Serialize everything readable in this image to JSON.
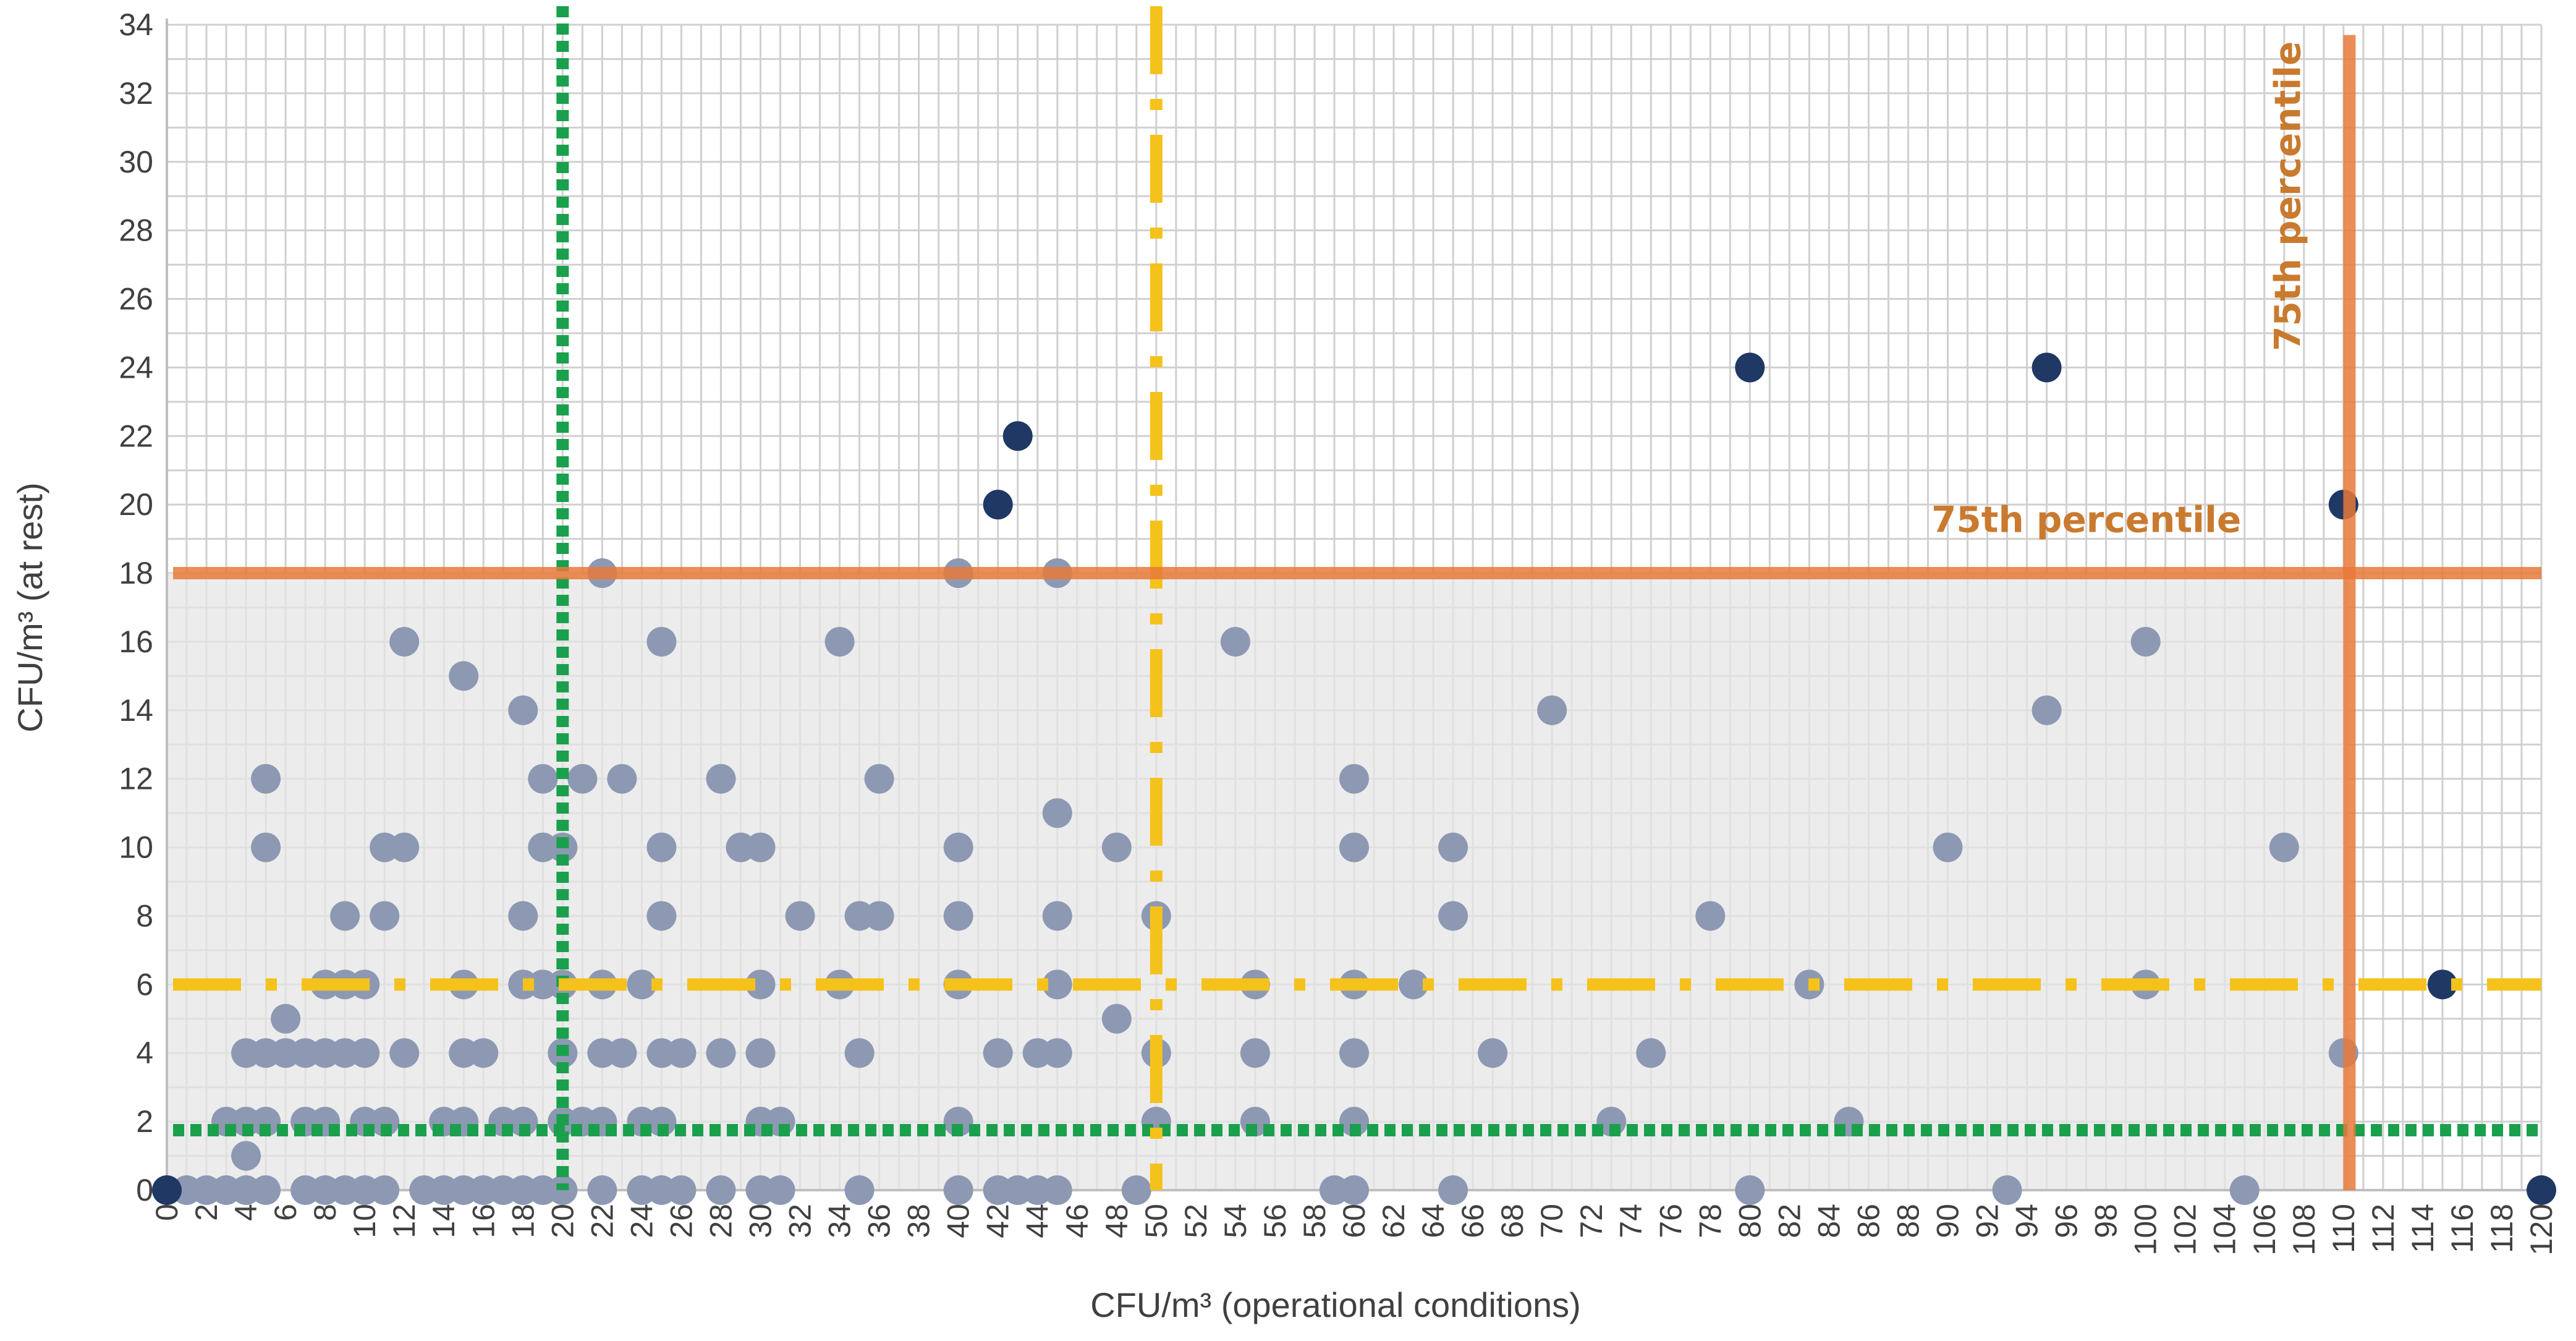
{
  "chart_data": {
    "type": "scatter",
    "title": "",
    "xlabel": "CFU/m³ (operational conditions)",
    "ylabel": "CFU/m³ (at rest)",
    "xlim": [
      0,
      120
    ],
    "ylim": [
      0,
      34
    ],
    "x_ticks": [
      0,
      2,
      4,
      6,
      8,
      10,
      12,
      14,
      16,
      18,
      20,
      22,
      24,
      26,
      28,
      30,
      32,
      34,
      36,
      38,
      40,
      42,
      44,
      46,
      48,
      50,
      52,
      54,
      56,
      58,
      60,
      62,
      64,
      66,
      68,
      70,
      72,
      74,
      76,
      78,
      80,
      82,
      84,
      86,
      88,
      90,
      92,
      94,
      96,
      98,
      100,
      102,
      104,
      106,
      108,
      110,
      112,
      114,
      116,
      118,
      120
    ],
    "y_ticks": [
      0,
      2,
      4,
      6,
      8,
      10,
      12,
      14,
      16,
      18,
      20,
      22,
      24,
      26,
      28,
      30,
      32,
      34
    ],
    "grid": true,
    "legend": "none",
    "colors": {
      "inside_points": "#8d99b3",
      "outlier_points": "#1f3864",
      "green_limit": "#1aa04c",
      "yellow_limit": "#f5c21b",
      "orange_percentile": "#e8793a",
      "shaded_region": "#e6e6e6"
    },
    "series": [
      {
        "values": [
          [
            1,
            0
          ],
          [
            2,
            0
          ],
          [
            3,
            0
          ],
          [
            4,
            0
          ],
          [
            5,
            0
          ],
          [
            7,
            0
          ],
          [
            8,
            0
          ],
          [
            9,
            0
          ],
          [
            10,
            0
          ],
          [
            11,
            0
          ],
          [
            13,
            0
          ],
          [
            14,
            0
          ],
          [
            15,
            0
          ],
          [
            16,
            0
          ],
          [
            17,
            0
          ],
          [
            18,
            0
          ],
          [
            19,
            0
          ],
          [
            20,
            0
          ],
          [
            22,
            0
          ],
          [
            24,
            0
          ],
          [
            25,
            0
          ],
          [
            26,
            0
          ],
          [
            28,
            0
          ],
          [
            30,
            0
          ],
          [
            31,
            0
          ],
          [
            35,
            0
          ],
          [
            40,
            0
          ],
          [
            42,
            0
          ],
          [
            43,
            0
          ],
          [
            44,
            0
          ],
          [
            45,
            0
          ],
          [
            49,
            0
          ],
          [
            59,
            0
          ],
          [
            60,
            0
          ],
          [
            65,
            0
          ],
          [
            80,
            0
          ],
          [
            93,
            0
          ],
          [
            105,
            0
          ],
          [
            4,
            1
          ],
          [
            3,
            2
          ],
          [
            4,
            2
          ],
          [
            5,
            2
          ],
          [
            7,
            2
          ],
          [
            8,
            2
          ],
          [
            10,
            2
          ],
          [
            11,
            2
          ],
          [
            14,
            2
          ],
          [
            15,
            2
          ],
          [
            17,
            2
          ],
          [
            18,
            2
          ],
          [
            20,
            2
          ],
          [
            21,
            2
          ],
          [
            22,
            2
          ],
          [
            24,
            2
          ],
          [
            25,
            2
          ],
          [
            30,
            2
          ],
          [
            31,
            2
          ],
          [
            40,
            2
          ],
          [
            50,
            2
          ],
          [
            55,
            2
          ],
          [
            60,
            2
          ],
          [
            73,
            2
          ],
          [
            85,
            2
          ],
          [
            4,
            4
          ],
          [
            5,
            4
          ],
          [
            6,
            4
          ],
          [
            7,
            4
          ],
          [
            8,
            4
          ],
          [
            9,
            4
          ],
          [
            10,
            4
          ],
          [
            12,
            4
          ],
          [
            15,
            4
          ],
          [
            16,
            4
          ],
          [
            20,
            4
          ],
          [
            22,
            4
          ],
          [
            23,
            4
          ],
          [
            25,
            4
          ],
          [
            26,
            4
          ],
          [
            28,
            4
          ],
          [
            30,
            4
          ],
          [
            35,
            4
          ],
          [
            42,
            4
          ],
          [
            44,
            4
          ],
          [
            45,
            4
          ],
          [
            50,
            4
          ],
          [
            55,
            4
          ],
          [
            60,
            4
          ],
          [
            67,
            4
          ],
          [
            75,
            4
          ],
          [
            110,
            4
          ],
          [
            6,
            5
          ],
          [
            48,
            5
          ],
          [
            8,
            6
          ],
          [
            9,
            6
          ],
          [
            10,
            6
          ],
          [
            15,
            6
          ],
          [
            18,
            6
          ],
          [
            19,
            6
          ],
          [
            20,
            6
          ],
          [
            22,
            6
          ],
          [
            24,
            6
          ],
          [
            30,
            6
          ],
          [
            34,
            6
          ],
          [
            40,
            6
          ],
          [
            45,
            6
          ],
          [
            55,
            6
          ],
          [
            60,
            6
          ],
          [
            63,
            6
          ],
          [
            83,
            6
          ],
          [
            100,
            6
          ],
          [
            9,
            8
          ],
          [
            11,
            8
          ],
          [
            18,
            8
          ],
          [
            25,
            8
          ],
          [
            32,
            8
          ],
          [
            35,
            8
          ],
          [
            36,
            8
          ],
          [
            40,
            8
          ],
          [
            45,
            8
          ],
          [
            50,
            8
          ],
          [
            65,
            8
          ],
          [
            78,
            8
          ],
          [
            5,
            10
          ],
          [
            11,
            10
          ],
          [
            12,
            10
          ],
          [
            19,
            10
          ],
          [
            20,
            10
          ],
          [
            25,
            10
          ],
          [
            29,
            10
          ],
          [
            30,
            10
          ],
          [
            40,
            10
          ],
          [
            48,
            10
          ],
          [
            60,
            10
          ],
          [
            65,
            10
          ],
          [
            90,
            10
          ],
          [
            107,
            10
          ],
          [
            45,
            11
          ],
          [
            5,
            12
          ],
          [
            19,
            12
          ],
          [
            21,
            12
          ],
          [
            23,
            12
          ],
          [
            28,
            12
          ],
          [
            36,
            12
          ],
          [
            60,
            12
          ],
          [
            70,
            14
          ],
          [
            95,
            14
          ],
          [
            18,
            14
          ],
          [
            15,
            15
          ],
          [
            12,
            16
          ],
          [
            25,
            16
          ],
          [
            34,
            16
          ],
          [
            54,
            16
          ],
          [
            100,
            16
          ],
          [
            22,
            18
          ],
          [
            40,
            18
          ],
          [
            45,
            18
          ]
        ]
      },
      {
        "values": [
          [
            0,
            0
          ],
          [
            120,
            0
          ],
          [
            115,
            6
          ],
          [
            42,
            20
          ],
          [
            110,
            20
          ],
          [
            43,
            22
          ],
          [
            80,
            24
          ],
          [
            95,
            24
          ]
        ]
      }
    ],
    "reference_lines": [
      {
        "orientation": "vertical",
        "x": 20,
        "style": "dotted",
        "color": "#1aa04c"
      },
      {
        "orientation": "horizontal",
        "y": 1.75,
        "style": "dotted",
        "color": "#1aa04c"
      },
      {
        "orientation": "vertical",
        "x": 50,
        "style": "dash-dot",
        "color": "#f5c21b"
      },
      {
        "orientation": "horizontal",
        "y": 6,
        "style": "dash-dot",
        "color": "#f5c21b"
      },
      {
        "orientation": "vertical",
        "x": 110.3,
        "style": "solid",
        "color": "#e8793a",
        "label": "75th percentile"
      },
      {
        "orientation": "horizontal",
        "y": 18,
        "style": "solid",
        "color": "#e8793a",
        "label": "75th percentile"
      }
    ],
    "shaded_region": {
      "x": [
        0,
        110.3
      ],
      "y": [
        0,
        18
      ]
    },
    "annotations": [
      {
        "text": "75th percentile",
        "x": 97,
        "y": 19.2,
        "rotation": 0
      },
      {
        "text": "75th percentile",
        "x": 107.8,
        "y": 29,
        "rotation": -90
      }
    ]
  }
}
